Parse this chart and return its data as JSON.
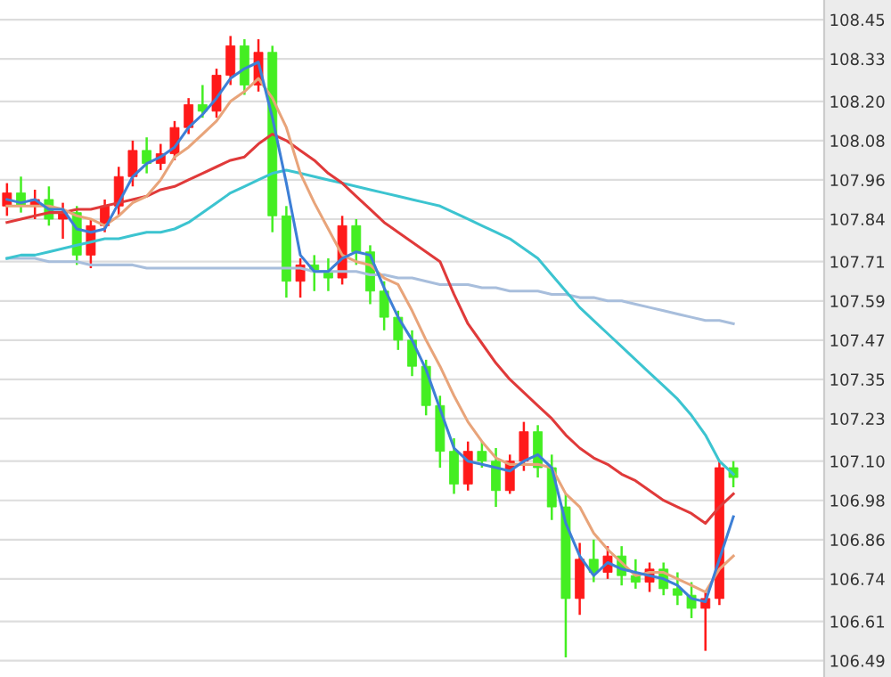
{
  "chart_data": {
    "type": "candlestick",
    "categories": [
      null,
      null,
      null,
      null,
      null,
      null,
      null,
      null,
      null,
      null,
      null,
      null,
      null,
      null,
      null,
      null,
      null,
      null,
      null,
      null,
      null,
      null,
      null,
      null,
      null,
      null,
      null,
      null,
      null,
      null,
      null,
      null,
      null,
      null,
      null,
      null,
      null,
      null,
      null,
      null,
      null,
      null,
      null,
      null,
      null,
      null,
      null,
      null,
      null,
      null,
      null,
      null,
      null
    ],
    "ohlc": [
      [
        107.88,
        107.95,
        107.85,
        107.92
      ],
      [
        107.92,
        107.97,
        107.86,
        107.88
      ],
      [
        107.88,
        107.93,
        107.84,
        107.9
      ],
      [
        107.9,
        107.94,
        107.82,
        107.84
      ],
      [
        107.84,
        107.89,
        107.78,
        107.86
      ],
      [
        107.86,
        107.88,
        107.7,
        107.73
      ],
      [
        107.73,
        107.84,
        107.69,
        107.82
      ],
      [
        107.82,
        107.9,
        107.8,
        107.88
      ],
      [
        107.88,
        108.0,
        107.85,
        107.97
      ],
      [
        107.97,
        108.08,
        107.94,
        108.05
      ],
      [
        108.05,
        108.09,
        107.98,
        108.01
      ],
      [
        108.01,
        108.07,
        107.99,
        108.04
      ],
      [
        108.04,
        108.14,
        108.02,
        108.12
      ],
      [
        108.12,
        108.21,
        108.1,
        108.19
      ],
      [
        108.19,
        108.25,
        108.15,
        108.17
      ],
      [
        108.17,
        108.3,
        108.15,
        108.28
      ],
      [
        108.28,
        108.4,
        108.25,
        108.37
      ],
      [
        108.37,
        108.39,
        108.22,
        108.25
      ],
      [
        108.25,
        108.39,
        108.23,
        108.35
      ],
      [
        108.35,
        108.37,
        107.8,
        107.85
      ],
      [
        107.85,
        107.88,
        107.6,
        107.65
      ],
      [
        107.65,
        107.72,
        107.6,
        107.7
      ],
      [
        107.7,
        107.73,
        107.62,
        107.68
      ],
      [
        107.68,
        107.72,
        107.62,
        107.66
      ],
      [
        107.66,
        107.85,
        107.64,
        107.82
      ],
      [
        107.82,
        107.84,
        107.7,
        107.74
      ],
      [
        107.74,
        107.76,
        107.58,
        107.62
      ],
      [
        107.62,
        107.65,
        107.5,
        107.54
      ],
      [
        107.54,
        107.56,
        107.44,
        107.47
      ],
      [
        107.47,
        107.5,
        107.36,
        107.39
      ],
      [
        107.39,
        107.41,
        107.24,
        107.27
      ],
      [
        107.27,
        107.3,
        107.08,
        107.13
      ],
      [
        107.13,
        107.17,
        107.0,
        107.03
      ],
      [
        107.03,
        107.16,
        107.01,
        107.13
      ],
      [
        107.13,
        107.16,
        107.08,
        107.1
      ],
      [
        107.1,
        107.14,
        106.96,
        107.01
      ],
      [
        107.01,
        107.12,
        107.0,
        107.1
      ],
      [
        107.1,
        107.22,
        107.07,
        107.19
      ],
      [
        107.19,
        107.21,
        107.05,
        107.08
      ],
      [
        107.08,
        107.12,
        106.92,
        106.96
      ],
      [
        106.96,
        107.0,
        106.5,
        106.68
      ],
      [
        106.68,
        106.85,
        106.63,
        106.8
      ],
      [
        106.8,
        106.86,
        106.73,
        106.76
      ],
      [
        106.76,
        106.84,
        106.74,
        106.81
      ],
      [
        106.81,
        106.84,
        106.72,
        106.75
      ],
      [
        106.75,
        106.8,
        106.71,
        106.73
      ],
      [
        106.73,
        106.79,
        106.7,
        106.77
      ],
      [
        106.77,
        106.79,
        106.69,
        106.71
      ],
      [
        106.71,
        106.76,
        106.66,
        106.69
      ],
      [
        106.69,
        106.73,
        106.62,
        106.65
      ],
      [
        106.65,
        106.7,
        106.52,
        106.68
      ],
      [
        106.68,
        107.1,
        106.66,
        107.08
      ],
      [
        107.08,
        107.1,
        107.02,
        107.05
      ]
    ],
    "colors": [
      "#ff1a1a",
      "#44ee22",
      "#ff1a1a",
      "#44ee22",
      "#ff1a1a",
      "#44ee22",
      "#ff1a1a",
      "#ff1a1a",
      "#ff1a1a",
      "#ff1a1a",
      "#44ee22",
      "#ff1a1a",
      "#ff1a1a",
      "#ff1a1a",
      "#44ee22",
      "#ff1a1a",
      "#ff1a1a",
      "#44ee22",
      "#ff1a1a",
      "#44ee22",
      "#44ee22",
      "#ff1a1a",
      "#44ee22",
      "#44ee22",
      "#ff1a1a",
      "#44ee22",
      "#44ee22",
      "#44ee22",
      "#44ee22",
      "#44ee22",
      "#44ee22",
      "#44ee22",
      "#44ee22",
      "#ff1a1a",
      "#44ee22",
      "#44ee22",
      "#ff1a1a",
      "#ff1a1a",
      "#44ee22",
      "#44ee22",
      "#44ee22",
      "#ff1a1a",
      "#44ee22",
      "#ff1a1a",
      "#44ee22",
      "#44ee22",
      "#ff1a1a",
      "#44ee22",
      "#44ee22",
      "#44ee22",
      "#ff1a1a",
      "#ff1a1a",
      "#44ee22"
    ],
    "series": [
      {
        "type": "line",
        "color": "#a8bedc",
        "values": [
          107.72,
          107.72,
          107.72,
          107.71,
          107.71,
          107.71,
          107.7,
          107.7,
          107.7,
          107.7,
          107.69,
          107.69,
          107.69,
          107.69,
          107.69,
          107.69,
          107.69,
          107.69,
          107.69,
          107.69,
          107.69,
          107.69,
          107.68,
          107.68,
          107.68,
          107.68,
          107.67,
          107.67,
          107.66,
          107.66,
          107.65,
          107.64,
          107.64,
          107.64,
          107.63,
          107.63,
          107.62,
          107.62,
          107.62,
          107.61,
          107.61,
          107.6,
          107.6,
          107.59,
          107.59,
          107.58,
          107.57,
          107.56,
          107.55,
          107.54,
          107.53,
          107.53,
          107.52
        ]
      },
      {
        "type": "line",
        "color": "#3cc4d0",
        "values": [
          107.72,
          107.73,
          107.73,
          107.74,
          107.75,
          107.76,
          107.77,
          107.78,
          107.78,
          107.79,
          107.8,
          107.8,
          107.81,
          107.83,
          107.86,
          107.89,
          107.92,
          107.94,
          107.96,
          107.98,
          107.99,
          107.98,
          107.97,
          107.96,
          107.95,
          107.94,
          107.93,
          107.92,
          107.91,
          107.9,
          107.89,
          107.88,
          107.86,
          107.84,
          107.82,
          107.8,
          107.78,
          107.75,
          107.72,
          107.67,
          107.62,
          107.57,
          107.53,
          107.49,
          107.45,
          107.41,
          107.37,
          107.33,
          107.29,
          107.24,
          107.18,
          107.1,
          107.06
        ]
      },
      {
        "type": "line",
        "color": "#e03a3a",
        "values": [
          107.83,
          107.84,
          107.85,
          107.86,
          107.86,
          107.87,
          107.87,
          107.88,
          107.89,
          107.9,
          107.91,
          107.93,
          107.94,
          107.96,
          107.98,
          108.0,
          108.02,
          108.03,
          108.07,
          108.1,
          108.08,
          108.05,
          108.02,
          107.98,
          107.95,
          107.91,
          107.87,
          107.83,
          107.8,
          107.77,
          107.74,
          107.71,
          107.61,
          107.52,
          107.46,
          107.4,
          107.35,
          107.31,
          107.27,
          107.23,
          107.18,
          107.14,
          107.11,
          107.09,
          107.06,
          107.04,
          107.01,
          106.98,
          106.96,
          106.94,
          106.91,
          106.96,
          107.0
        ]
      },
      {
        "type": "line",
        "color": "#e8a47a",
        "values": [
          107.88,
          107.88,
          107.88,
          107.88,
          107.87,
          107.85,
          107.84,
          107.82,
          107.85,
          107.89,
          107.91,
          107.96,
          108.03,
          108.06,
          108.1,
          108.14,
          108.2,
          108.23,
          108.27,
          108.21,
          108.12,
          107.98,
          107.89,
          107.81,
          107.73,
          107.71,
          107.7,
          107.66,
          107.64,
          107.56,
          107.47,
          107.39,
          107.3,
          107.22,
          107.16,
          107.11,
          107.09,
          107.09,
          107.09,
          107.08,
          107.0,
          106.96,
          106.88,
          106.83,
          106.79,
          106.75,
          106.76,
          106.76,
          106.74,
          106.72,
          106.7,
          106.77,
          106.81
        ]
      },
      {
        "type": "line",
        "color": "#3d7fd6",
        "values": [
          107.9,
          107.89,
          107.9,
          107.87,
          107.87,
          107.81,
          107.8,
          107.81,
          107.89,
          107.97,
          108.01,
          108.03,
          108.06,
          108.12,
          108.16,
          108.21,
          108.27,
          108.3,
          108.32,
          108.15,
          107.95,
          107.73,
          107.68,
          107.68,
          107.72,
          107.74,
          107.73,
          107.63,
          107.54,
          107.47,
          107.38,
          107.26,
          107.14,
          107.1,
          107.09,
          107.08,
          107.07,
          107.1,
          107.12,
          107.08,
          106.91,
          106.81,
          106.75,
          106.79,
          106.77,
          106.76,
          106.75,
          106.74,
          106.72,
          106.68,
          106.67,
          106.8,
          106.93
        ]
      }
    ],
    "ylim": [
      106.44,
      108.51
    ],
    "yticks": [
      108.45,
      108.33,
      {
        "value": 108.2,
        "label": "108.20"
      },
      108.08,
      107.96,
      107.84,
      107.71,
      107.59,
      107.47,
      107.35,
      107.23,
      {
        "value": 107.1,
        "label": "107.10"
      },
      106.98,
      106.86,
      106.74,
      106.61,
      106.49
    ],
    "grid": "y",
    "tick_labels": "y"
  }
}
